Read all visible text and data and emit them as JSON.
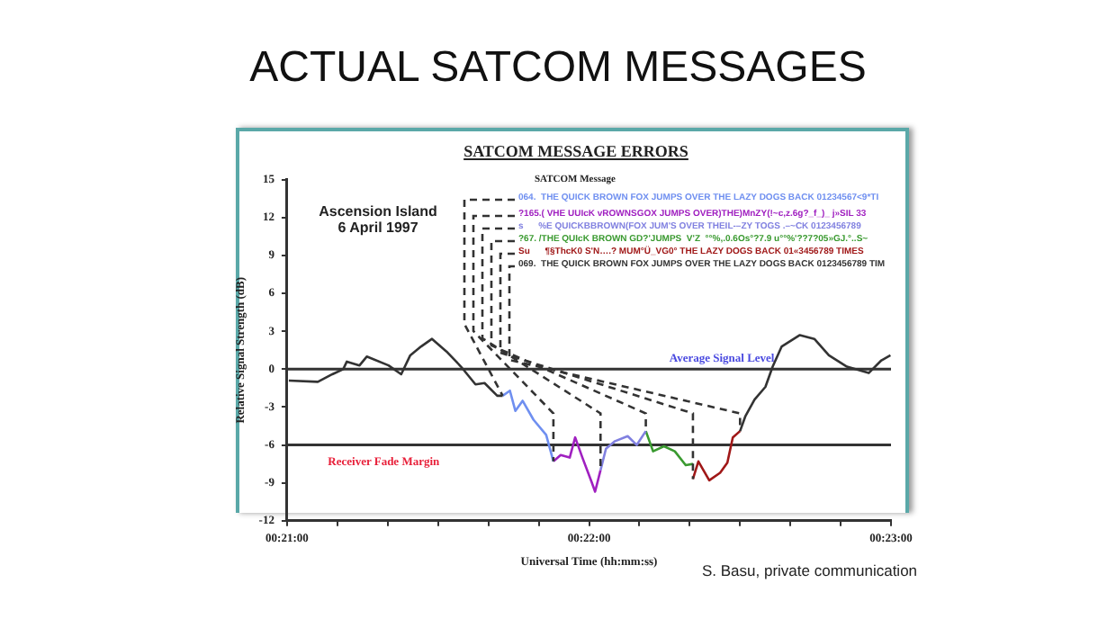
{
  "chart_data": {
    "type": "line",
    "title": "ACTUAL SATCOM MESSAGES",
    "subtitle": "SATCOM MESSAGE ERRORS",
    "xlabel": "Universal Time (hh:mm:ss)",
    "ylabel": "Relative Signal Strength (dB)",
    "xlim": [
      0.35,
      0.38333
    ],
    "ylim": [
      -12,
      15
    ],
    "xticks": [
      {
        "value": 0.35,
        "label": "00:21:00"
      },
      {
        "value": 0.35278,
        "label": null
      },
      {
        "value": 0.35556,
        "label": null
      },
      {
        "value": 0.35833,
        "label": null
      },
      {
        "value": 0.36111,
        "label": null
      },
      {
        "value": 0.36389,
        "label": null
      },
      {
        "value": 0.36667,
        "label": "00:22:00"
      },
      {
        "value": 0.36944,
        "label": null
      },
      {
        "value": 0.37222,
        "label": null
      },
      {
        "value": 0.375,
        "label": null
      },
      {
        "value": 0.37778,
        "label": null
      },
      {
        "value": 0.38056,
        "label": null
      },
      {
        "value": 0.38333,
        "label": "00:23:00"
      }
    ],
    "yticks": [
      15,
      12,
      9,
      6,
      3,
      0,
      -3,
      -6,
      -9,
      -12
    ],
    "grid": false,
    "marker": "none",
    "line_style": "solid",
    "series": [
      {
        "color": "#333333",
        "x": [
          0.3501,
          0.3517,
          0.3525,
          0.3531,
          0.3533,
          0.354,
          0.3544,
          0.3556,
          0.3563,
          0.3568,
          0.3574,
          0.358,
          0.3588,
          0.3596,
          0.3604,
          0.3609,
          0.3616,
          0.3619
        ],
        "values": [
          -0.9,
          -1.0,
          -0.4,
          0,
          0.6,
          0.3,
          1.0,
          0.3,
          -0.4,
          1.1,
          1.8,
          2.4,
          1.4,
          0.2,
          -1.2,
          -1.1,
          -2.1,
          -2.1
        ]
      },
      {
        "color": "#6f8ff0",
        "x": [
          0.3619,
          0.3623,
          0.3626,
          0.363,
          0.3636,
          0.3643,
          0.3647
        ],
        "values": [
          -2.1,
          -1.7,
          -3.3,
          -2.5,
          -4.0,
          -5.2,
          -7.3
        ]
      },
      {
        "color": "#a020c0",
        "x": [
          0.3647,
          0.3651,
          0.3656,
          0.3659,
          0.3663,
          0.3668,
          0.367,
          0.3673
        ],
        "values": [
          -7.3,
          -6.8,
          -7.0,
          -5.4,
          -7.0,
          -8.9,
          -9.7,
          -8.0
        ]
      },
      {
        "color": "#8080e0",
        "x": [
          0.3673,
          0.3676,
          0.3681,
          0.3688,
          0.3693,
          0.3698
        ],
        "values": [
          -8.0,
          -6.3,
          -5.7,
          -5.3,
          -6.0,
          -4.9
        ]
      },
      {
        "color": "#3a9a30",
        "x": [
          0.3698,
          0.3702,
          0.3708,
          0.3714,
          0.372,
          0.3724
        ],
        "values": [
          -4.9,
          -6.5,
          -6.1,
          -6.5,
          -7.6,
          -7.5
        ]
      },
      {
        "color": "#a01818",
        "x": [
          0.3724,
          0.3727,
          0.3733,
          0.3739,
          0.3743,
          0.3746,
          0.375
        ],
        "values": [
          -8.7,
          -7.3,
          -8.8,
          -8.2,
          -7.4,
          -5.4,
          -4.9
        ]
      },
      {
        "color": "#333333",
        "x": [
          0.375,
          0.3753,
          0.3758,
          0.3764,
          0.3768,
          0.3773,
          0.3783,
          0.3791,
          0.3799,
          0.3809,
          0.3821,
          0.3828,
          0.3833
        ],
        "values": [
          -4.9,
          -3.7,
          -2.4,
          -1.4,
          0.2,
          1.8,
          2.7,
          2.4,
          1.1,
          0.2,
          -0.3,
          0.7,
          1.1
        ]
      }
    ],
    "ref_lines": [
      {
        "axis": "y",
        "value": 0,
        "label": "Average Signal Level",
        "color": "#333333"
      },
      {
        "axis": "y",
        "value": -6,
        "label": "Receiver Fade Margin",
        "color": "#333333"
      }
    ],
    "annotations": [
      "SATCOM Message",
      "Ascension Island\n6 April 1997",
      {
        "text": "064.  THE QUICK BROWN FOX JUMPS OVER THE LAZY DOGS BACK 01234567<9*TI",
        "x": 0.3619,
        "y": -2.1
      },
      {
        "text": "?165.( VHE UUIcK vROWNSGOX JUMPS OVER)THE)MnZY(!~c,z.6g?_f_)_ j»SIL 33",
        "x": 0.3647,
        "y": -7.3
      },
      {
        "text": "s      %E QUICKBBROWN(FOX JUM'S OVER THEIL-–ZY TOGS .–~CK 0123456789",
        "x": 0.3673,
        "y": -8.0
      },
      {
        "text": "?67. /THE QUIcK BROWN GD?'JUMPS  V'Z  °°%,.0.6Os°?7.9 u°°%'??7?05»GJ.°..S~",
        "x": 0.3698,
        "y": -4.9
      },
      {
        "text": "Su      ¶§ThcK0 S'N….? MUM°Ü_VG0° THE LAZY DOGS BACK 01«3456789 TIMES",
        "x": 0.3724,
        "y": -8.7
      },
      {
        "text": "069.  THE QUICK BROWN FOX JUMPS OVER THE LAZY DOGS BACK 0123456789 TIM",
        "x": 0.375,
        "y": -4.9
      },
      "S. Basu, private communication"
    ]
  }
}
